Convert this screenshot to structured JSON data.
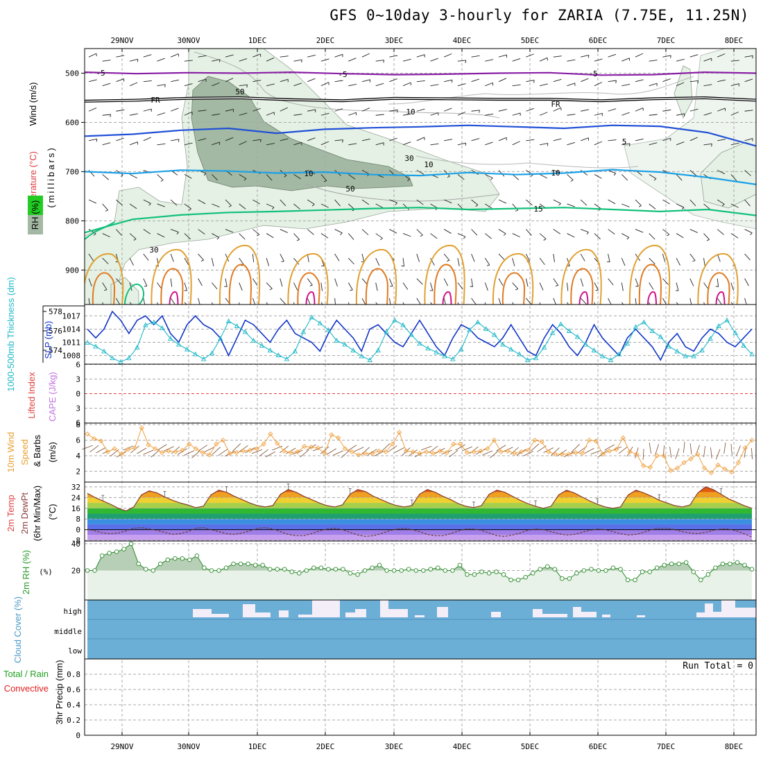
{
  "title": "GFS 0~10day 3-hourly for ZARIA (7.75E, 11.25N)",
  "x_date_labels": [
    "29NOV",
    "30NOV",
    "1DEC",
    "2DEC",
    "3DEC",
    "4DEC",
    "5DEC",
    "6DEC",
    "7DEC",
    "8DEC"
  ],
  "colors": {
    "grid": "#a8a8a8",
    "rh_fill_light": "#e4f1e4",
    "rh_fill_dark": "#a3b9a3",
    "temp_neg5": "#8a1fa6",
    "temp_fr": "#000000",
    "temp_5": "#1f4fd6",
    "temp_10": "#1aa0e6",
    "temp_15": "#11c07a",
    "temp_20": "#e0a030",
    "temp_25": "#e07a20",
    "temp_30": "#d0148c",
    "slp": "#1034c8",
    "thickness": "#20b8c8",
    "wind10m": "#f0a040",
    "rh2m": "#2a8a2a",
    "cloud": "#6baed6",
    "cloud_gap": "#f4eef8"
  },
  "chart_data": [
    {
      "type": "line",
      "panel": "upper-air",
      "ylabel": "(millibars)",
      "label_rh": "RH (%)",
      "label_temp": "Temperature (°C)",
      "label_wind": "Wind (m/s)",
      "ylim": [
        970,
        450
      ],
      "y_ticks": [
        500,
        600,
        700,
        800,
        900
      ],
      "series": [
        {
          "name": "-5",
          "level_mb": [
            498,
            501,
            499,
            500,
            498,
            501,
            503,
            502,
            500,
            499,
            504,
            503,
            498,
            500
          ]
        },
        {
          "name": "FR",
          "level_mb": [
            557,
            555,
            551,
            550,
            554,
            556,
            551,
            552,
            553,
            553,
            556,
            552,
            550,
            555
          ]
        },
        {
          "name": "5",
          "level_mb": [
            628,
            624,
            616,
            612,
            622,
            614,
            611,
            609,
            606,
            609,
            612,
            606,
            608,
            621,
            648
          ]
        },
        {
          "name": "10",
          "level_mb": [
            700,
            704,
            697,
            699,
            703,
            701,
            706,
            708,
            702,
            706,
            703,
            696,
            701,
            712,
            726
          ]
        },
        {
          "name": "15",
          "level_mb": [
            824,
            797,
            788,
            783,
            781,
            778,
            775,
            773,
            777,
            775,
            773,
            777,
            781,
            777,
            789
          ]
        }
      ],
      "contour_labels": [
        "-5",
        "-5",
        "-5",
        "FR",
        "FR",
        "5",
        "10",
        "10",
        "15",
        "50",
        "50",
        "30",
        "30",
        "10",
        "10"
      ]
    },
    {
      "type": "line",
      "panel": "slp-thickness",
      "label_thickness": "1000-500mb Thickness (dm)",
      "label_slp": "SLP (mb)",
      "left_ticks": [
        "578",
        "576",
        "574"
      ],
      "right_ticks": [
        "1017",
        "1014",
        "1011",
        "1008"
      ],
      "series": [
        {
          "name": "SLP",
          "values": [
            1014,
            1012,
            1014,
            1018,
            1016,
            1013,
            1016,
            1017,
            1015,
            1017,
            1013,
            1011,
            1015,
            1017,
            1015,
            1014,
            1012,
            1008,
            1012,
            1016,
            1015,
            1013,
            1011,
            1014,
            1016,
            1013,
            1012,
            1011,
            1009,
            1013,
            1016,
            1014,
            1012,
            1009,
            1014,
            1015,
            1013,
            1011,
            1010,
            1013,
            1016,
            1013,
            1010,
            1008,
            1012,
            1015,
            1014,
            1012,
            1011,
            1010,
            1012,
            1015,
            1012,
            1009,
            1008,
            1012,
            1015,
            1013,
            1010,
            1008,
            1011,
            1015,
            1012,
            1010,
            1008,
            1012,
            1014,
            1012,
            1010,
            1007,
            1011,
            1013,
            1010,
            1009,
            1012,
            1014,
            1013,
            1011,
            1010,
            1012,
            1014
          ]
        },
        {
          "name": "Thickness",
          "values": [
            574.8,
            574.4,
            573.9,
            573.2,
            572.8,
            573.2,
            574.3,
            576.6,
            576.9,
            576.3,
            575.2,
            574.6,
            574.1,
            573.6,
            573.1,
            573.7,
            575.2,
            577.0,
            576.5,
            575.9,
            575.0,
            574.5,
            574.0,
            573.5,
            573.1,
            573.9,
            575.9,
            577.4,
            576.8,
            576.1,
            575.0,
            574.6,
            574.0,
            573.4,
            573.0,
            574.0,
            575.9,
            577.1,
            576.6,
            575.6,
            574.7,
            574.2,
            573.8,
            573.4,
            573.1,
            574.1,
            576.1,
            576.9,
            576.2,
            575.6,
            574.6,
            574.1,
            573.6,
            573.0,
            573.2,
            574.3,
            575.8,
            576.7,
            576.0,
            575.4,
            574.6,
            574.0,
            573.4,
            573.0,
            573.6,
            574.7,
            576.4,
            576.9,
            576.0,
            575.4,
            574.4,
            573.9,
            573.4,
            573.4,
            574.0,
            575.2,
            576.5,
            577.1,
            575.8,
            574.5,
            573.6
          ]
        }
      ]
    },
    {
      "type": "line",
      "panel": "lifted-index-cape",
      "label_li": "Lifted Index",
      "label_cape": "CAPE (J/kg)",
      "y_ticks": [
        "6",
        "3",
        "0",
        "3",
        "6"
      ],
      "series": []
    },
    {
      "type": "line",
      "panel": "wind-10m",
      "label_title": "10m Wind",
      "label_speed": "Speed",
      "label_barbs": "& Barbs",
      "ylabel": "(m/s)",
      "ylim": [
        1,
        8
      ],
      "y_ticks": [
        2,
        4,
        6,
        8
      ],
      "series": [
        {
          "name": "10m Wind Speed",
          "values": [
            6.8,
            6.2,
            5.9,
            4.5,
            4.9,
            4.2,
            4.8,
            5.0,
            7.6,
            5.4,
            4.9,
            4.4,
            4.6,
            4.5,
            4.7,
            5.5,
            4.9,
            4.4,
            4.1,
            5.5,
            6.0,
            4.3,
            4.4,
            4.6,
            4.7,
            4.9,
            5.5,
            6.8,
            5.6,
            4.6,
            4.4,
            4.5,
            5.2,
            5.1,
            5.0,
            4.3,
            6.7,
            6.3,
            4.9,
            4.5,
            4.1,
            4.3,
            4.3,
            4.6,
            4.5,
            5.5,
            7.0,
            4.6,
            4.5,
            4.3,
            4.5,
            4.3,
            4.6,
            4.4,
            5.5,
            5.5,
            4.4,
            4.5,
            4.6,
            4.9,
            6.0,
            4.5,
            4.6,
            4.3,
            4.5,
            4.7,
            6.0,
            5.8,
            4.5,
            4.2,
            4.2,
            4.2,
            4.4,
            4.3,
            6.0,
            5.9,
            4.2,
            4.6,
            4.8,
            6.3,
            4.5,
            4.2,
            2.7,
            2.5,
            4.0,
            4.0,
            2.1,
            2.4,
            3.1,
            3.6,
            4.2,
            2.4,
            1.8,
            2.8,
            2.3,
            1.9,
            3.1,
            5.0,
            6.0
          ]
        }
      ]
    },
    {
      "type": "area",
      "panel": "temp-2m",
      "label_temp": "2m Temp",
      "label_dew": "2m DewPt",
      "label_minmax": "(6hr Min/Max)",
      "ylabel": "(°C)",
      "ylim": [
        -8,
        32
      ],
      "y_ticks": [
        "32",
        "24",
        "16",
        "8",
        "0",
        "-8"
      ],
      "series": [
        {
          "name": "2m Temp",
          "values": [
            27.2,
            24.0,
            21.5,
            19.0,
            16.0,
            14.0,
            17.0,
            26.0,
            29.0,
            27.5,
            24.5,
            22.0,
            20.0,
            18.5,
            16.5,
            17.5,
            26.0,
            29.5,
            28.0,
            25.0,
            22.5,
            20.0,
            18.0,
            17.0,
            18.0,
            26.5,
            30.0,
            28.0,
            25.0,
            22.5,
            20.0,
            18.0,
            17.0,
            18.5,
            26.5,
            30.0,
            28.5,
            25.0,
            22.5,
            20.0,
            18.0,
            17.0,
            18.0,
            26.5,
            30.0,
            28.0,
            25.0,
            22.5,
            19.5,
            17.5,
            16.5,
            18.0,
            26.5,
            29.5,
            28.0,
            25.0,
            22.0,
            19.5,
            17.5,
            16.0,
            17.5,
            26.0,
            29.5,
            27.5,
            24.5,
            21.5,
            19.0,
            17.0,
            16.0,
            17.0,
            26.0,
            29.5,
            27.5,
            25.0,
            22.0,
            20.0,
            18.0,
            17.0,
            18.5,
            27.5,
            32.0,
            30.0,
            26.5,
            23.0,
            20.5,
            18.0,
            16.0
          ]
        },
        {
          "name": "2m DewPt",
          "values": [
            0.5,
            -1,
            -2.5,
            -3,
            -2.5,
            -1,
            1,
            1.5,
            0.5,
            -0.5,
            -2,
            -3.5,
            -3,
            -1.5,
            1,
            1.5,
            0,
            -1.5,
            -3,
            -3.5,
            -2.5,
            -1,
            1,
            1.5,
            0.5,
            -1.5,
            -3.5,
            -4.5,
            -4.5,
            -3,
            -1,
            0.5,
            1,
            0,
            -2,
            -4,
            -5,
            -4.5,
            -3,
            -1,
            0.5,
            1,
            0,
            -1.5,
            -3.5,
            -4.5,
            -4.5,
            -3,
            -1,
            0.5,
            0.5,
            -0.5,
            -2.5,
            -4.5,
            -5,
            -4,
            -2.5,
            -0.5,
            0.5,
            0,
            -1.5,
            -3,
            -4,
            -3.5,
            -2,
            -0.5,
            0.5,
            0,
            -1.5,
            -3,
            -4,
            -3.5,
            -2,
            0,
            1,
            1,
            0,
            -1.5,
            -2.5,
            -3,
            -2,
            -0.5,
            0.5,
            0.5,
            -1,
            -3,
            -5.5
          ]
        }
      ]
    },
    {
      "type": "area",
      "panel": "rh-2m",
      "ylabel": "2m RH (%)",
      "ylim": [
        0,
        42
      ],
      "y_ticks": [
        40,
        20
      ],
      "series": [
        {
          "name": "2m RH",
          "values": [
            20,
            20,
            31,
            33,
            34,
            36,
            40,
            25,
            21,
            20,
            25,
            28,
            29,
            29,
            28,
            31,
            22,
            20,
            20,
            22,
            25,
            25,
            25,
            24,
            24,
            21,
            21,
            21,
            19,
            18,
            20,
            22,
            22,
            21,
            21,
            21,
            18,
            17,
            20,
            22,
            24,
            20,
            20,
            20,
            21,
            20,
            20,
            21,
            22,
            20,
            20,
            24,
            17,
            17,
            19,
            18,
            19,
            17,
            13,
            13,
            15,
            18,
            21,
            23,
            21,
            14,
            14,
            18,
            20,
            21,
            20,
            20,
            22,
            21,
            13,
            13,
            19,
            19,
            22,
            24,
            25,
            25,
            26,
            19,
            13,
            17,
            22,
            25,
            25,
            26,
            24,
            21
          ]
        }
      ]
    },
    {
      "type": "bar",
      "panel": "cloud-cover",
      "ylabel": "Cloud Cover (%)",
      "level_labels": [
        "high",
        "middle",
        "low"
      ],
      "series": [
        {
          "name": "high",
          "values": [
            0,
            0,
            0,
            0,
            0,
            0,
            0,
            0,
            0,
            0,
            0,
            0,
            0,
            0,
            0,
            0,
            0,
            0,
            0,
            0,
            0,
            0,
            0,
            0,
            0,
            0,
            0,
            0,
            0,
            0,
            0,
            0,
            0,
            0,
            0,
            0,
            0,
            0,
            0,
            0,
            0,
            0,
            0,
            0,
            0,
            0,
            0,
            0,
            0,
            0,
            0,
            0,
            0,
            0,
            0,
            0,
            0,
            0,
            0,
            0,
            0,
            0,
            0,
            0,
            0,
            0,
            0,
            0,
            0,
            0,
            0,
            0,
            0,
            0,
            0,
            0,
            0,
            0,
            0,
            0,
            0,
            0,
            0,
            0,
            0,
            0,
            0,
            0,
            0,
            0
          ]
        }
      ]
    },
    {
      "type": "bar",
      "panel": "precip-3hr",
      "ylabel": "3hr Precip (mm)",
      "label_total": "Total / Rain",
      "label_conv": "Convective",
      "ylim": [
        0,
        1
      ],
      "y_ticks": [
        "0.8",
        "0.6",
        "0.4",
        "0.2",
        "0"
      ],
      "annotation": "Run Total = 0",
      "series": []
    }
  ]
}
